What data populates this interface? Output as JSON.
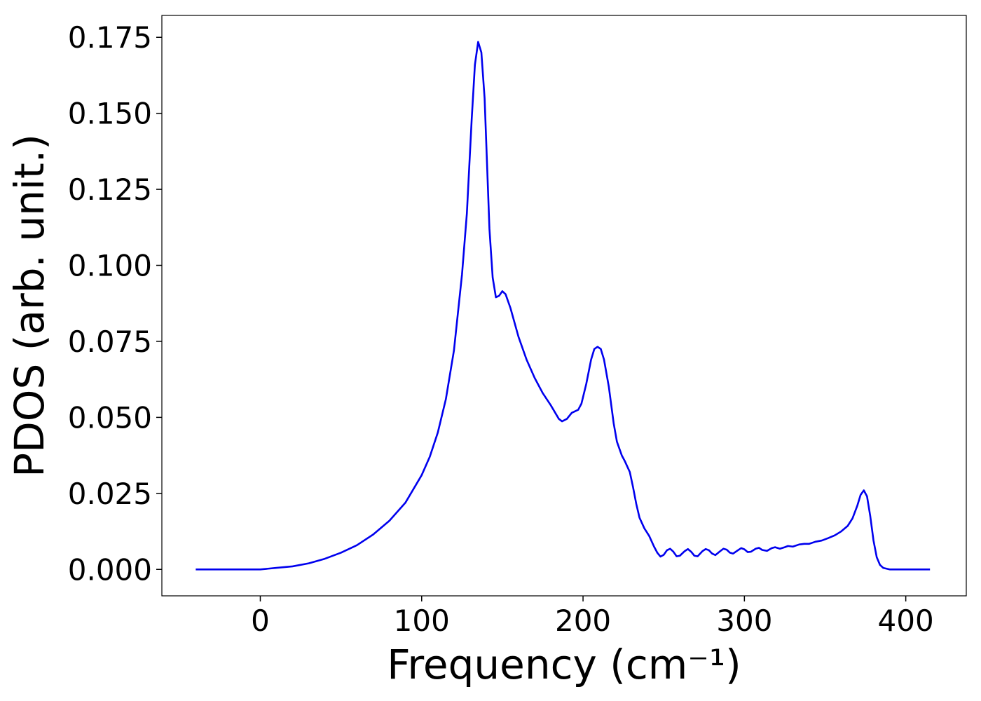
{
  "chart_data": {
    "type": "line",
    "x_label": "Frequency (cm⁻¹)",
    "y_label": "PDOS (arb. unit.)",
    "xlim": [
      -61,
      437.5
    ],
    "ylim": [
      -0.0087,
      0.1822
    ],
    "xticks": [
      0,
      100,
      200,
      300,
      400
    ],
    "yticks": [
      {
        "value": 0,
        "label": "0.000"
      },
      {
        "value": 0.025,
        "label": "0.025"
      },
      {
        "value": 0.05,
        "label": "0.050"
      },
      {
        "value": 0.075,
        "label": "0.075"
      },
      {
        "value": 0.1,
        "label": "0.100"
      },
      {
        "value": 0.125,
        "label": "0.125"
      },
      {
        "value": 0.15,
        "label": "0.150"
      },
      {
        "value": 0.175,
        "label": "0.175"
      }
    ],
    "grid": false,
    "x": [
      -40,
      -20,
      0,
      10,
      20,
      30,
      40,
      50,
      60,
      70,
      80,
      90,
      100,
      105,
      110,
      115,
      120,
      125,
      128,
      131,
      133,
      135,
      137,
      139,
      142,
      144,
      146,
      148,
      150,
      152,
      155,
      160,
      165,
      170,
      175,
      180,
      185,
      187,
      190,
      193,
      197,
      199,
      202,
      205,
      207,
      209,
      211,
      213,
      216,
      219,
      221,
      224,
      226,
      229,
      231,
      233,
      235,
      238,
      241,
      244,
      246,
      248,
      250,
      252,
      254,
      256,
      258,
      260,
      263,
      265,
      267,
      269,
      271,
      274,
      276,
      278,
      280,
      282,
      285,
      287,
      289,
      291,
      293,
      296,
      298,
      300,
      302,
      304,
      307,
      309,
      311,
      314,
      317,
      319,
      322,
      325,
      327,
      330,
      334,
      337,
      340,
      344,
      348,
      352,
      356,
      360,
      364,
      367,
      370,
      372,
      374,
      376,
      378,
      380,
      382,
      384,
      386,
      390,
      400,
      415
    ],
    "series": [
      {
        "color": "#0000ee",
        "values": [
          0,
          0,
          0,
          0.0005,
          0.001,
          0.002,
          0.0035,
          0.0055,
          0.008,
          0.0115,
          0.016,
          0.022,
          0.031,
          0.037,
          0.045,
          0.056,
          0.072,
          0.097,
          0.117,
          0.148,
          0.166,
          0.1735,
          0.17,
          0.155,
          0.112,
          0.096,
          0.0895,
          0.09,
          0.0915,
          0.0905,
          0.086,
          0.0765,
          0.069,
          0.063,
          0.058,
          0.054,
          0.0495,
          0.0487,
          0.0495,
          0.0515,
          0.0525,
          0.0545,
          0.061,
          0.069,
          0.0725,
          0.0732,
          0.0725,
          0.069,
          0.06,
          0.048,
          0.042,
          0.0375,
          0.0355,
          0.032,
          0.027,
          0.0215,
          0.017,
          0.0135,
          0.011,
          0.0075,
          0.0055,
          0.0042,
          0.0048,
          0.0063,
          0.0068,
          0.0058,
          0.0043,
          0.0045,
          0.006,
          0.0067,
          0.0058,
          0.0045,
          0.0043,
          0.006,
          0.0067,
          0.0063,
          0.0052,
          0.0047,
          0.006,
          0.0068,
          0.0065,
          0.0055,
          0.0052,
          0.0063,
          0.007,
          0.0066,
          0.0057,
          0.0058,
          0.0068,
          0.0071,
          0.0064,
          0.0061,
          0.007,
          0.0073,
          0.0068,
          0.0073,
          0.0077,
          0.0075,
          0.0082,
          0.0084,
          0.0084,
          0.0091,
          0.0095,
          0.0103,
          0.0112,
          0.0125,
          0.0143,
          0.0168,
          0.021,
          0.0245,
          0.026,
          0.024,
          0.0175,
          0.0095,
          0.004,
          0.0015,
          0.0005,
          0,
          0,
          0
        ]
      }
    ]
  }
}
